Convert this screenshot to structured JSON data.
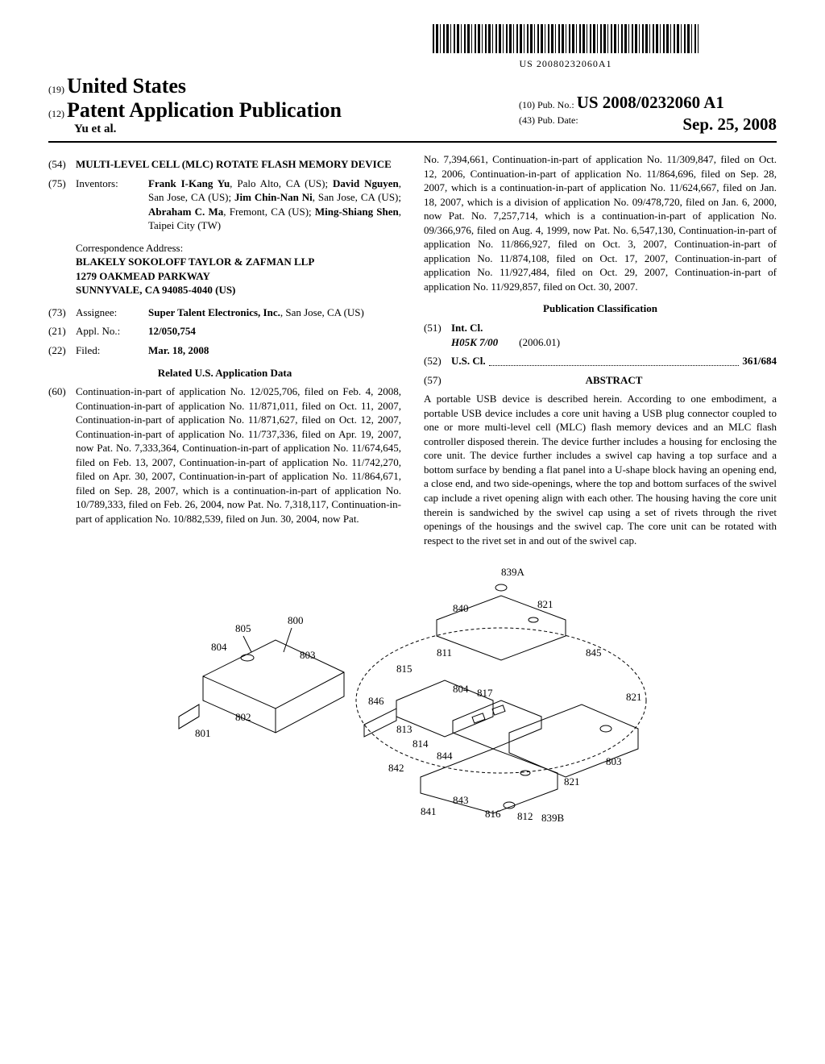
{
  "barcode_text": "US 20080232060A1",
  "header": {
    "country_num": "(19)",
    "country": "United States",
    "doc_type_num": "(12)",
    "doc_type": "Patent Application Publication",
    "authors": "Yu et al.",
    "pub_no_num": "(10)",
    "pub_no_label": "Pub. No.:",
    "pub_no": "US 2008/0232060 A1",
    "pub_date_num": "(43)",
    "pub_date_label": "Pub. Date:",
    "pub_date": "Sep. 25, 2008"
  },
  "title": {
    "num": "(54)",
    "text": "MULTI-LEVEL CELL (MLC) ROTATE FLASH MEMORY DEVICE"
  },
  "inventors": {
    "num": "(75)",
    "label": "Inventors:",
    "text_parts": [
      {
        "b": "Frank I-Kang Yu",
        "r": ", Palo Alto, CA (US); "
      },
      {
        "b": "David Nguyen",
        "r": ", San Jose, CA (US); "
      },
      {
        "b": "Jim Chin-Nan Ni",
        "r": ", San Jose, CA (US); "
      },
      {
        "b": "Abraham C. Ma",
        "r": ", Fremont, CA (US); "
      },
      {
        "b": "Ming-Shiang Shen",
        "r": ", Taipei City (TW)"
      }
    ]
  },
  "correspondence": {
    "label": "Correspondence Address:",
    "lines": [
      "BLAKELY SOKOLOFF TAYLOR & ZAFMAN LLP",
      "1279 OAKMEAD PARKWAY",
      "SUNNYVALE, CA 94085-4040 (US)"
    ]
  },
  "assignee": {
    "num": "(73)",
    "label": "Assignee:",
    "bold": "Super Talent Electronics, Inc.",
    "rest": ", San Jose, CA (US)"
  },
  "appl_no": {
    "num": "(21)",
    "label": "Appl. No.:",
    "val": "12/050,754"
  },
  "filed": {
    "num": "(22)",
    "label": "Filed:",
    "val": "Mar. 18, 2008"
  },
  "related_title": "Related U.S. Application Data",
  "related": {
    "num": "(60)",
    "text": "Continuation-in-part of application No. 12/025,706, filed on Feb. 4, 2008, Continuation-in-part of application No. 11/871,011, filed on Oct. 11, 2007, Continuation-in-part of application No. 11/871,627, filed on Oct. 12, 2007, Continuation-in-part of application No. 11/737,336, filed on Apr. 19, 2007, now Pat. No. 7,333,364, Continuation-in-part of application No. 11/674,645, filed on Feb. 13, 2007, Continuation-in-part of application No. 11/742,270, filed on Apr. 30, 2007, Continuation-in-part of application No. 11/864,671, filed on Sep. 28, 2007, which is a continuation-in-part of application No. 10/789,333, filed on Feb. 26, 2004, now Pat. No. 7,318,117, Continuation-in-part of application No. 10/882,539, filed on Jun. 30, 2004, now Pat."
  },
  "related_cont": "No. 7,394,661, Continuation-in-part of application No. 11/309,847, filed on Oct. 12, 2006, Continuation-in-part of application No. 11/864,696, filed on Sep. 28, 2007, which is a continuation-in-part of application No. 11/624,667, filed on Jan. 18, 2007, which is a division of application No. 09/478,720, filed on Jan. 6, 2000, now Pat. No. 7,257,714, which is a continuation-in-part of application No. 09/366,976, filed on Aug. 4, 1999, now Pat. No. 6,547,130, Continuation-in-part of application No. 11/866,927, filed on Oct. 3, 2007, Continuation-in-part of application No. 11/874,108, filed on Oct. 17, 2007, Continuation-in-part of application No. 11/927,484, filed on Oct. 29, 2007, Continuation-in-part of application No. 11/929,857, filed on Oct. 30, 2007.",
  "pub_class_title": "Publication Classification",
  "intcl": {
    "num": "(51)",
    "label": "Int. Cl.",
    "code": "H05K 7/00",
    "year": "(2006.01)"
  },
  "uscl": {
    "num": "(52)",
    "label": "U.S. Cl.",
    "val": "361/684"
  },
  "abstract": {
    "num": "(57)",
    "title": "ABSTRACT",
    "text": "A portable USB device is described herein. According to one embodiment, a portable USB device includes a core unit having a USB plug connector coupled to one or more multi-level cell (MLC) flash memory devices and an MLC flash controller disposed therein. The device further includes a housing for enclosing the core unit. The device further includes a swivel cap having a top surface and a bottom surface by bending a flat panel into a U-shape block having an opening end, a close end, and two side-openings, where the top and bottom surfaces of the swivel cap include a rivet opening align with each other. The housing having the core unit therein is sandwiched by the swivel cap using a set of rivets through the rivet openings of the housings and the swivel cap. The core unit can be rotated with respect to the rivet set in and out of the swivel cap."
  },
  "figure_labels": [
    "800",
    "801",
    "802",
    "803",
    "804",
    "805",
    "811",
    "812",
    "813",
    "814",
    "815",
    "816",
    "817",
    "821",
    "839A",
    "839B",
    "840",
    "841",
    "842",
    "843",
    "844",
    "845",
    "846"
  ]
}
